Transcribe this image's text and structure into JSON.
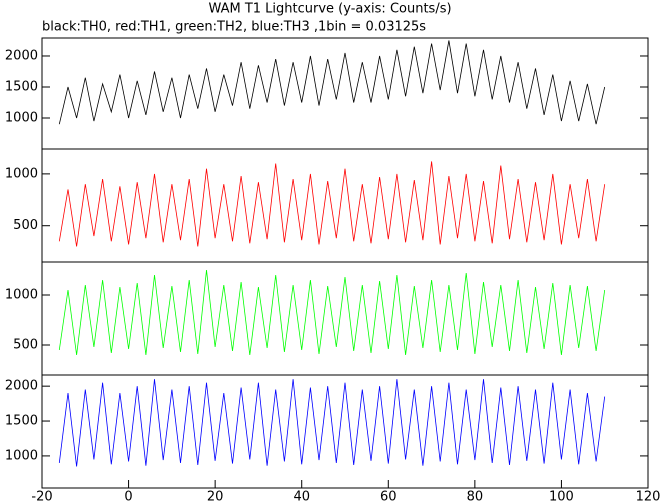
{
  "chart_data": [
    {
      "type": "line",
      "title": "WAM T1 Lightcurve (y-axis: Counts/s)",
      "subtitle": "black:TH0, red:TH1, green:TH2, blue:TH3 ,1bin = 0.03125s",
      "color": "#000000",
      "xlim": [
        -20,
        120
      ],
      "ylim": [
        500,
        2290
      ],
      "yticks": [
        1000,
        1500,
        2000
      ],
      "x": [
        -16,
        -14,
        -12,
        -10,
        -8,
        -6,
        -4,
        -2,
        0,
        2,
        4,
        6,
        8,
        10,
        12,
        14,
        16,
        18,
        20,
        22,
        24,
        26,
        28,
        30,
        32,
        34,
        36,
        38,
        40,
        42,
        44,
        46,
        48,
        50,
        52,
        54,
        56,
        58,
        60,
        62,
        64,
        66,
        68,
        70,
        72,
        74,
        76,
        78,
        80,
        82,
        84,
        86,
        88,
        90,
        92,
        94,
        96,
        98,
        100,
        102,
        104,
        106,
        108,
        110
      ],
      "values": [
        900,
        1500,
        1000,
        1650,
        950,
        1550,
        1100,
        1700,
        1000,
        1600,
        1050,
        1750,
        1100,
        1650,
        1000,
        1700,
        1150,
        1800,
        1100,
        1700,
        1200,
        1900,
        1150,
        1850,
        1250,
        1950,
        1200,
        1900,
        1250,
        2000,
        1200,
        1950,
        1300,
        2050,
        1250,
        1900,
        1250,
        2000,
        1300,
        2100,
        1350,
        2150,
        1400,
        2200,
        1450,
        2250,
        1400,
        2200,
        1350,
        2100,
        1300,
        2000,
        1250,
        1900,
        1150,
        1800,
        1050,
        1700,
        950,
        1600,
        950,
        1550,
        900,
        1500
      ]
    },
    {
      "type": "line",
      "color": "#ff0000",
      "xlim": [
        -20,
        120
      ],
      "ylim": [
        150,
        1240
      ],
      "yticks": [
        500,
        1000
      ],
      "x": [
        -16,
        -14,
        -12,
        -10,
        -8,
        -6,
        -4,
        -2,
        0,
        2,
        4,
        6,
        8,
        10,
        12,
        14,
        16,
        18,
        20,
        22,
        24,
        26,
        28,
        30,
        32,
        34,
        36,
        38,
        40,
        42,
        44,
        46,
        48,
        50,
        52,
        54,
        56,
        58,
        60,
        62,
        64,
        66,
        68,
        70,
        72,
        74,
        76,
        78,
        80,
        82,
        84,
        86,
        88,
        90,
        92,
        94,
        96,
        98,
        100,
        102,
        104,
        106,
        108,
        110
      ],
      "values": [
        350,
        850,
        300,
        900,
        400,
        950,
        350,
        880,
        320,
        920,
        380,
        1000,
        340,
        900,
        360,
        950,
        300,
        1050,
        380,
        900,
        350,
        980,
        330,
        920,
        370,
        1100,
        340,
        950,
        360,
        1000,
        320,
        930,
        380,
        1050,
        350,
        900,
        330,
        970,
        370,
        1000,
        340,
        940,
        360,
        1120,
        320,
        980,
        380,
        1000,
        350,
        930,
        330,
        1080,
        370,
        950,
        340,
        920,
        360,
        1000,
        320,
        900,
        380,
        950,
        350,
        900
      ]
    },
    {
      "type": "line",
      "color": "#00ff00",
      "xlim": [
        -20,
        120
      ],
      "ylim": [
        200,
        1330
      ],
      "yticks": [
        500,
        1000
      ],
      "x": [
        -16,
        -14,
        -12,
        -10,
        -8,
        -6,
        -4,
        -2,
        0,
        2,
        4,
        6,
        8,
        10,
        12,
        14,
        16,
        18,
        20,
        22,
        24,
        26,
        28,
        30,
        32,
        34,
        36,
        38,
        40,
        42,
        44,
        46,
        48,
        50,
        52,
        54,
        56,
        58,
        60,
        62,
        64,
        66,
        68,
        70,
        72,
        74,
        76,
        78,
        80,
        82,
        84,
        86,
        88,
        90,
        92,
        94,
        96,
        98,
        100,
        102,
        104,
        106,
        108,
        110
      ],
      "values": [
        450,
        1050,
        400,
        1100,
        480,
        1150,
        420,
        1080,
        460,
        1120,
        400,
        1200,
        470,
        1090,
        430,
        1150,
        410,
        1250,
        480,
        1100,
        440,
        1130,
        400,
        1080,
        470,
        1200,
        430,
        1100,
        450,
        1150,
        410,
        1090,
        480,
        1180,
        440,
        1100,
        420,
        1140,
        460,
        1200,
        400,
        1090,
        470,
        1150,
        430,
        1100,
        450,
        1220,
        410,
        1130,
        480,
        1100,
        440,
        1150,
        420,
        1080,
        460,
        1120,
        400,
        1100,
        470,
        1090,
        440,
        1050
      ]
    },
    {
      "type": "line",
      "color": "#0000ff",
      "xlim": [
        -20,
        120
      ],
      "ylim": [
        540,
        2160
      ],
      "yticks": [
        1000,
        1500,
        2000
      ],
      "xticks": [
        -20,
        0,
        20,
        40,
        60,
        80,
        100,
        120
      ],
      "x": [
        -16,
        -14,
        -12,
        -10,
        -8,
        -6,
        -4,
        -2,
        0,
        2,
        4,
        6,
        8,
        10,
        12,
        14,
        16,
        18,
        20,
        22,
        24,
        26,
        28,
        30,
        32,
        34,
        36,
        38,
        40,
        42,
        44,
        46,
        48,
        50,
        52,
        54,
        56,
        58,
        60,
        62,
        64,
        66,
        68,
        70,
        72,
        74,
        76,
        78,
        80,
        82,
        84,
        86,
        88,
        90,
        92,
        94,
        96,
        98,
        100,
        102,
        104,
        106,
        108,
        110
      ],
      "values": [
        900,
        1900,
        850,
        1950,
        950,
        2050,
        880,
        1900,
        920,
        2000,
        860,
        2100,
        940,
        1950,
        900,
        2000,
        870,
        2050,
        930,
        1900,
        890,
        1980,
        950,
        2050,
        860,
        1950,
        920,
        2100,
        880,
        1980,
        940,
        2000,
        900,
        2050,
        870,
        1950,
        930,
        2000,
        890,
        2100,
        950,
        1950,
        860,
        2000,
        920,
        2050,
        880,
        1950,
        940,
        2100,
        900,
        1980,
        870,
        2000,
        930,
        1950,
        890,
        2050,
        950,
        1950,
        880,
        1900,
        920,
        1850
      ]
    }
  ]
}
